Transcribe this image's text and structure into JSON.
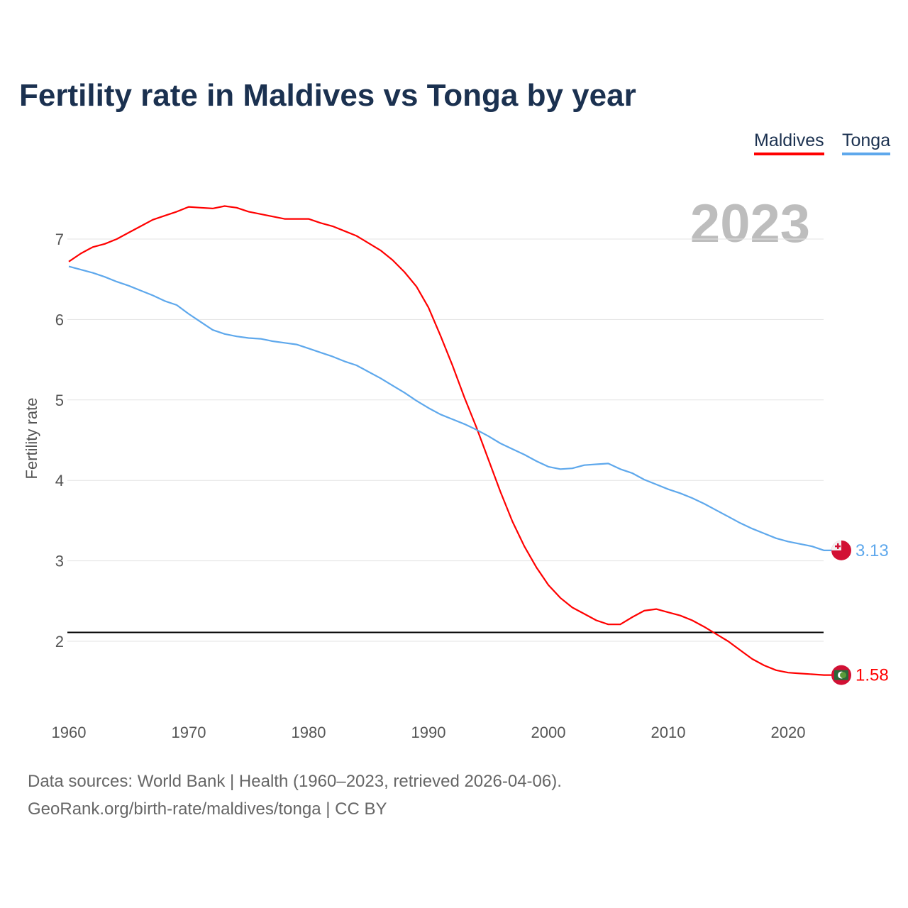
{
  "chart_data": {
    "type": "line",
    "title": "Fertility rate in Maldives vs Tonga by year",
    "xlabel": "",
    "ylabel": "Fertility rate",
    "current_year": "2023",
    "xlim": [
      1960,
      2023
    ],
    "ylim": [
      1.2,
      7.6
    ],
    "x_ticks": [
      "1960",
      "1970",
      "1980",
      "1990",
      "2000",
      "2010",
      "2020"
    ],
    "y_ticks": [
      "2",
      "3",
      "4",
      "5",
      "6",
      "7"
    ],
    "grid": true,
    "legend": "top-right",
    "reference_line": 2.11,
    "x": [
      1960,
      1961,
      1962,
      1963,
      1964,
      1965,
      1966,
      1967,
      1968,
      1969,
      1970,
      1971,
      1972,
      1973,
      1974,
      1975,
      1976,
      1977,
      1978,
      1979,
      1980,
      1981,
      1982,
      1983,
      1984,
      1985,
      1986,
      1987,
      1988,
      1989,
      1990,
      1991,
      1992,
      1993,
      1994,
      1995,
      1996,
      1997,
      1998,
      1999,
      2000,
      2001,
      2002,
      2003,
      2004,
      2005,
      2006,
      2007,
      2008,
      2009,
      2010,
      2011,
      2012,
      2013,
      2014,
      2015,
      2016,
      2017,
      2018,
      2019,
      2020,
      2021,
      2022,
      2023
    ],
    "series": [
      {
        "name": "Maldives",
        "color": "#ff0000",
        "end_label": "1.58",
        "values": [
          6.72,
          6.82,
          6.9,
          6.94,
          7.0,
          7.08,
          7.16,
          7.24,
          7.29,
          7.34,
          7.4,
          7.39,
          7.38,
          7.41,
          7.39,
          7.34,
          7.31,
          7.28,
          7.25,
          7.25,
          7.25,
          7.2,
          7.16,
          7.1,
          7.04,
          6.95,
          6.86,
          6.74,
          6.59,
          6.41,
          6.15,
          5.8,
          5.43,
          5.03,
          4.66,
          4.26,
          3.86,
          3.49,
          3.18,
          2.92,
          2.7,
          2.54,
          2.42,
          2.34,
          2.26,
          2.21,
          2.21,
          2.3,
          2.38,
          2.4,
          2.36,
          2.32,
          2.26,
          2.18,
          2.09,
          2.0,
          1.89,
          1.78,
          1.7,
          1.64,
          1.61,
          1.6,
          1.59,
          1.58
        ]
      },
      {
        "name": "Tonga",
        "color": "#5ea8ec",
        "end_label": "3.13",
        "values": [
          6.66,
          6.62,
          6.58,
          6.53,
          6.47,
          6.42,
          6.36,
          6.3,
          6.23,
          6.18,
          6.07,
          5.97,
          5.87,
          5.82,
          5.79,
          5.77,
          5.76,
          5.73,
          5.71,
          5.69,
          5.64,
          5.59,
          5.54,
          5.48,
          5.43,
          5.35,
          5.27,
          5.18,
          5.09,
          4.99,
          4.9,
          4.82,
          4.76,
          4.7,
          4.63,
          4.55,
          4.46,
          4.39,
          4.32,
          4.24,
          4.17,
          4.14,
          4.15,
          4.19,
          4.2,
          4.21,
          4.14,
          4.09,
          4.01,
          3.95,
          3.89,
          3.84,
          3.78,
          3.71,
          3.63,
          3.55,
          3.47,
          3.4,
          3.34,
          3.28,
          3.24,
          3.21,
          3.18,
          3.13
        ]
      }
    ]
  },
  "footer": {
    "line1": "Data sources: World Bank | Health (1960–2023, retrieved 2026-04-06).",
    "line2": "GeoRank.org/birth-rate/maldives/tonga | CC BY"
  }
}
